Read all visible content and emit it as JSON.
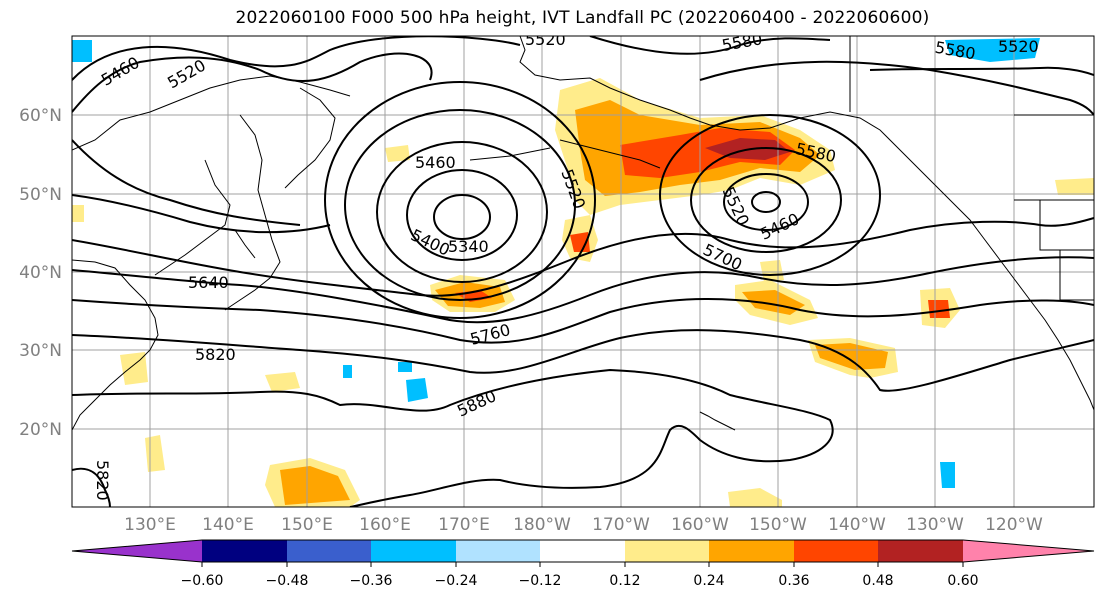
{
  "title": "2022060100 F000 500 hPa height, IVT Landfall PC (2022060400 - 2022060600)",
  "lat_labels": [
    "60°N",
    "50°N",
    "40°N",
    "30°N",
    "20°N"
  ],
  "lon_labels": [
    "130°E",
    "140°E",
    "150°E",
    "160°E",
    "170°E",
    "180°W",
    "170°W",
    "160°W",
    "150°W",
    "140°W",
    "130°W",
    "120°W"
  ],
  "contour_labels": [
    "5460",
    "5520",
    "5520",
    "5580",
    "5580",
    "5520",
    "5460",
    "5520",
    "5400",
    "5340",
    "5580",
    "5520",
    "5460",
    "5700",
    "5640",
    "5760",
    "5820",
    "5880",
    "5820"
  ],
  "colorbar": {
    "tick_labels": [
      "−0.60",
      "−0.48",
      "−0.36",
      "−0.24",
      "−0.12",
      "0.12",
      "0.24",
      "0.36",
      "0.48",
      "0.60"
    ],
    "colors": [
      "#9932CC",
      "#000080",
      "#3A5FCD",
      "#00BFFF",
      "#B0E2FF",
      "#FFFFFF",
      "#FFEC8B",
      "#FFA500",
      "#FF4500",
      "#B22222",
      "#FF82AB"
    ]
  }
}
